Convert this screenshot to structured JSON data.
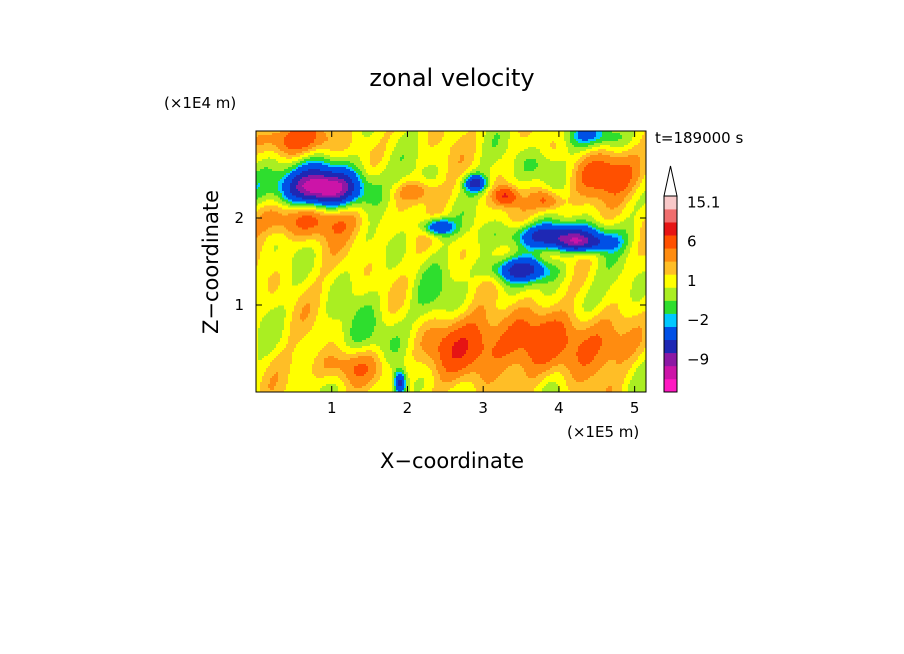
{
  "chart_data": {
    "type": "heatmap",
    "title": "zonal velocity",
    "xlabel": "X−coordinate",
    "ylabel": "Z−coordinate",
    "x_unit": "(×1E5 m)",
    "y_unit": "(×1E4 m)",
    "time_label": "t=189000 s",
    "xlim": [
      0,
      5.15
    ],
    "ylim": [
      0,
      3.0
    ],
    "x_ticks": [
      {
        "value": 1,
        "label": "1"
      },
      {
        "value": 2,
        "label": "2"
      },
      {
        "value": 3,
        "label": "3"
      },
      {
        "value": 4,
        "label": "4"
      },
      {
        "value": 5,
        "label": "5"
      }
    ],
    "y_ticks": [
      {
        "value": 1,
        "label": "1"
      },
      {
        "value": 2,
        "label": "2"
      }
    ],
    "colorbar": {
      "colors": [
        "#ff19c2",
        "#cc14a8",
        "#8c18a4",
        "#1e28b4",
        "#0050e6",
        "#00c8ff",
        "#2ede2e",
        "#aaee22",
        "#ffff00",
        "#ffbe26",
        "#ff8c10",
        "#ff5000",
        "#e61414",
        "#f06e6e",
        "#f8c8c8",
        "#ffffff"
      ],
      "labels": [
        {
          "text": "15.1",
          "at_color_index": 14
        },
        {
          "text": "6",
          "at_color_index": 11
        },
        {
          "text": "1",
          "at_color_index": 8
        },
        {
          "text": "−2",
          "at_color_index": 5
        },
        {
          "text": "−9",
          "at_color_index": 2
        }
      ]
    },
    "blobs": [
      {
        "x": 0.8,
        "z": 2.35,
        "rx": 0.75,
        "rz": 0.28,
        "v": -9
      },
      {
        "x": 0.9,
        "z": 2.33,
        "rx": 0.45,
        "rz": 0.18,
        "v": -6
      },
      {
        "x": 0.7,
        "z": 2.0,
        "rx": 0.7,
        "rz": 0.22,
        "v": 6
      },
      {
        "x": 0.5,
        "z": 2.9,
        "rx": 0.5,
        "rz": 0.18,
        "v": 6
      },
      {
        "x": 4.0,
        "z": 1.8,
        "rx": 0.6,
        "rz": 0.14,
        "v": -10
      },
      {
        "x": 4.3,
        "z": 1.7,
        "rx": 0.4,
        "rz": 0.1,
        "v": -7
      },
      {
        "x": 3.5,
        "z": 1.4,
        "rx": 0.45,
        "rz": 0.14,
        "v": -8
      },
      {
        "x": 4.7,
        "z": 2.5,
        "rx": 0.5,
        "rz": 0.25,
        "v": 6
      },
      {
        "x": 3.4,
        "z": 0.6,
        "rx": 1.1,
        "rz": 0.4,
        "v": 5
      },
      {
        "x": 4.5,
        "z": 0.6,
        "rx": 0.5,
        "rz": 0.35,
        "v": 4
      },
      {
        "x": 2.6,
        "z": 0.5,
        "rx": 0.6,
        "rz": 0.3,
        "v": 3
      },
      {
        "x": 3.0,
        "z": 1.0,
        "rx": 1.3,
        "rz": 0.35,
        "v": -1
      },
      {
        "x": 1.6,
        "z": 0.6,
        "rx": 0.5,
        "rz": 0.35,
        "v": -3
      },
      {
        "x": 2.3,
        "z": 1.1,
        "rx": 0.3,
        "rz": 0.5,
        "v": -1.5
      },
      {
        "x": 4.7,
        "z": 0.9,
        "rx": 0.5,
        "rz": 0.4,
        "v": -2
      },
      {
        "x": 1.2,
        "z": 0.3,
        "rx": 0.5,
        "rz": 0.2,
        "v": 4
      },
      {
        "x": 2.4,
        "z": 1.9,
        "rx": 0.2,
        "rz": 0.1,
        "v": -9
      },
      {
        "x": 2.9,
        "z": 2.4,
        "rx": 0.15,
        "rz": 0.1,
        "v": -9
      },
      {
        "x": 3.3,
        "z": 2.25,
        "rx": 0.15,
        "rz": 0.1,
        "v": 7
      },
      {
        "x": 3.85,
        "z": 2.2,
        "rx": 0.2,
        "rz": 0.12,
        "v": 6
      },
      {
        "x": 2.1,
        "z": 2.3,
        "rx": 0.3,
        "rz": 0.12,
        "v": 4
      },
      {
        "x": 4.5,
        "z": 2.95,
        "rx": 0.5,
        "rz": 0.15,
        "v": -4
      },
      {
        "x": 3.8,
        "z": 2.6,
        "rx": 0.3,
        "rz": 0.2,
        "v": -3
      },
      {
        "x": 1.9,
        "z": 0.1,
        "rx": 0.08,
        "rz": 0.15,
        "v": -9
      }
    ]
  }
}
